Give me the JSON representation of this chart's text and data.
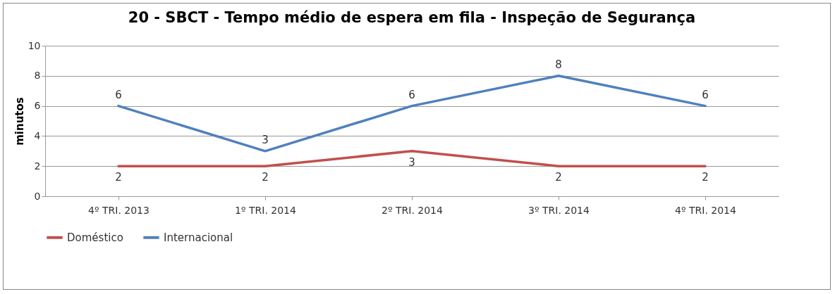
{
  "chart_data": {
    "type": "line",
    "title": "20 - SBCT - Tempo médio de espera em fila - Inspeção de Segurança",
    "ylabel": "minutos",
    "categories": [
      "4º TRI. 2013",
      "1º TRI. 2014",
      "2º TRI. 2014",
      "3º TRI. 2014",
      "4º TRI. 2014"
    ],
    "series": [
      {
        "name": "Doméstico",
        "color": "#c0504d",
        "values": [
          2,
          2,
          3,
          2,
          2
        ]
      },
      {
        "name": "Internacional",
        "color": "#4f81bd",
        "values": [
          6,
          3,
          6,
          8,
          6
        ]
      }
    ],
    "ylim": [
      0,
      10
    ],
    "yticks": [
      0,
      2,
      4,
      6,
      8,
      10
    ],
    "grid": "y",
    "legend": "bottom",
    "data_labels": true
  }
}
